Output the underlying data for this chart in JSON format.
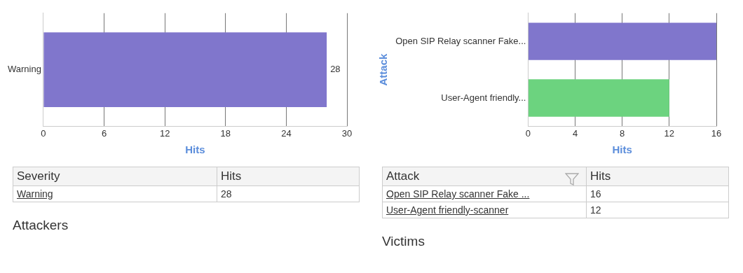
{
  "chart_data": [
    {
      "type": "bar",
      "orientation": "horizontal",
      "categories": [
        "Warning"
      ],
      "values": [
        28
      ],
      "color": "#8076cc",
      "xlim": [
        0,
        30
      ],
      "xticks": [
        0,
        6,
        12,
        18,
        24,
        30
      ],
      "xlabel": "Hits",
      "grid": "x",
      "data_labels": true,
      "annotations": [
        "Severity",
        "Hits",
        "Warning",
        "28",
        "Attackers"
      ]
    },
    {
      "type": "bar",
      "orientation": "horizontal",
      "categories": [
        "Open SIP Relay scanner Fake...",
        "User-Agent friendly..."
      ],
      "values": [
        16,
        12
      ],
      "colors": [
        "#8076cc",
        "#6cd37f"
      ],
      "xlim": [
        0,
        16
      ],
      "xticks": [
        0,
        4,
        8,
        12,
        16
      ],
      "xlabel": "Hits",
      "ylabel": "Attack",
      "grid": "x",
      "annotations": [
        "Attack",
        "Hits",
        "Open SIP Relay scanner Fake ...",
        "16",
        "User-Agent friendly-scanner",
        "12",
        "Victims"
      ]
    }
  ]
}
